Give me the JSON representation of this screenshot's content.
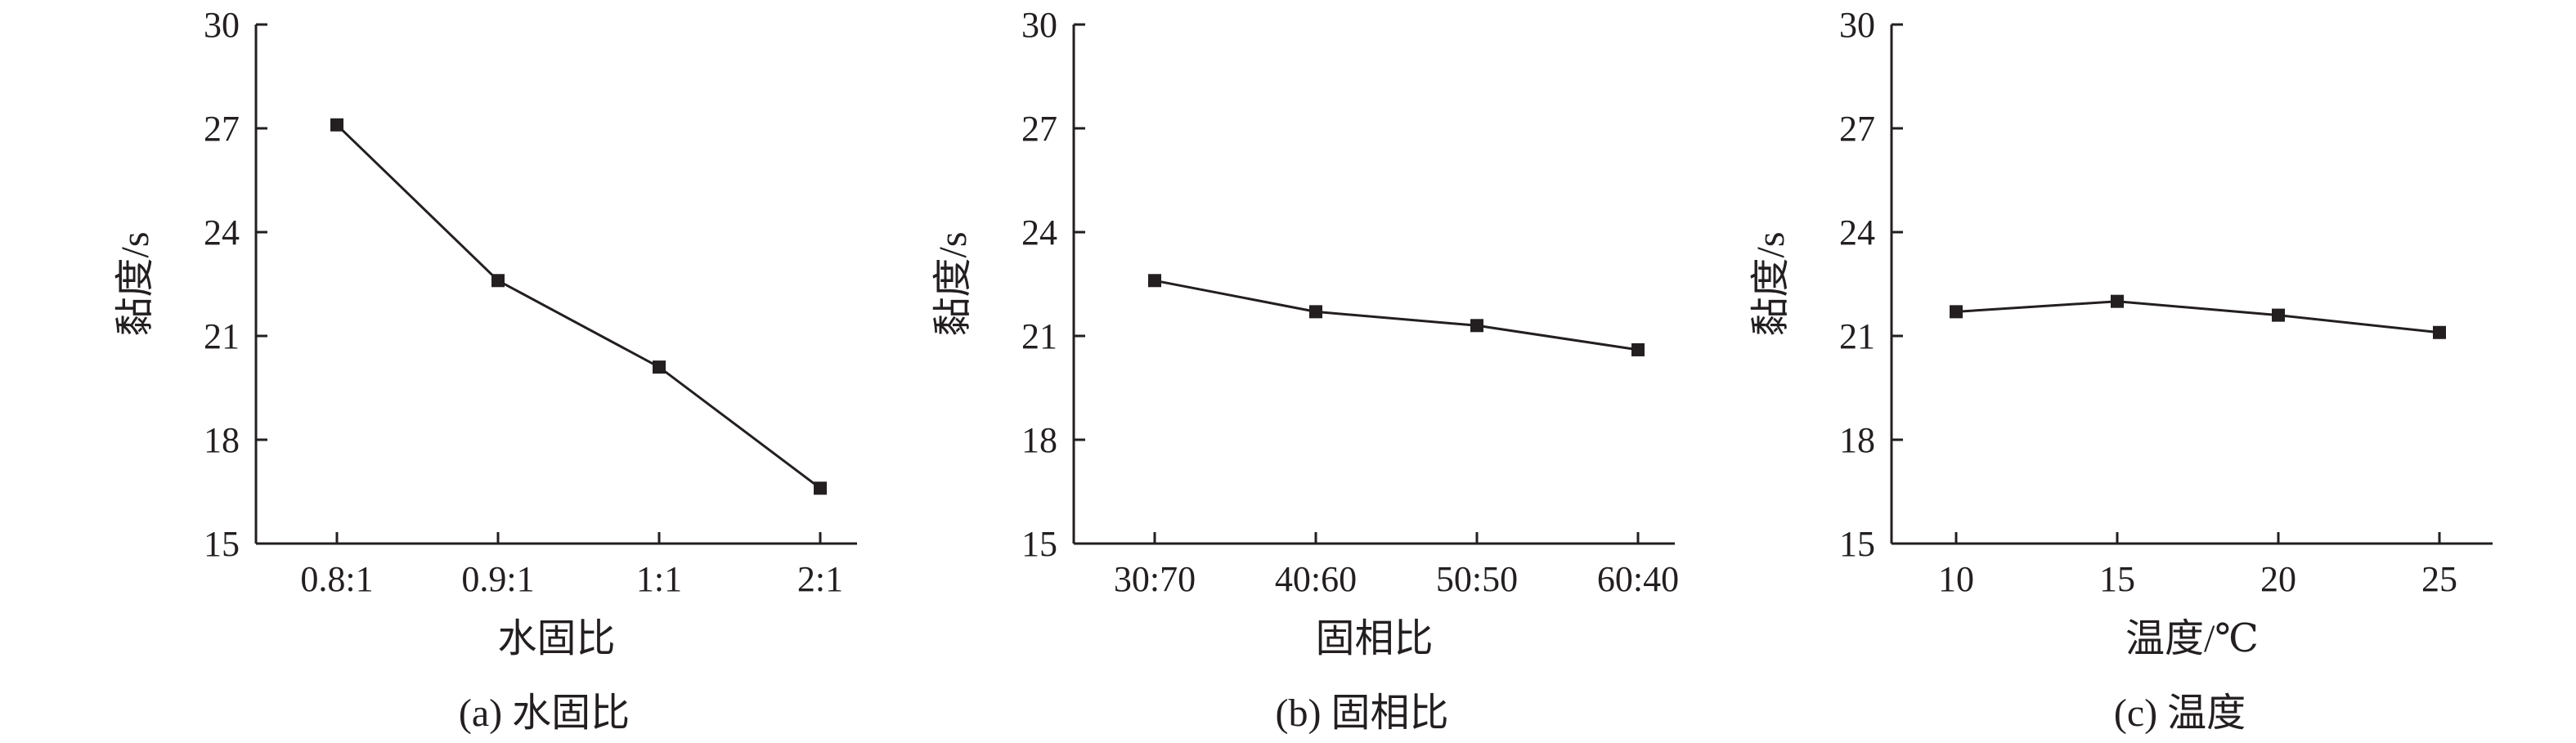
{
  "chart_data": [
    {
      "type": "line",
      "categories": [
        "0.8:1",
        "0.9:1",
        "1:1",
        "2:1"
      ],
      "series": [
        {
          "values": [
            27.1,
            22.6,
            20.1,
            16.6
          ]
        }
      ],
      "xlabel": "水固比",
      "ylabel": "黏度/s",
      "caption": "(a) 水固比",
      "ylim": [
        15,
        30
      ],
      "yticks": [
        "15",
        "18",
        "21",
        "24",
        "27",
        "30"
      ],
      "grid": false,
      "marker": "square"
    },
    {
      "type": "line",
      "categories": [
        "30:70",
        "40:60",
        "50:50",
        "60:40"
      ],
      "series": [
        {
          "values": [
            22.6,
            21.7,
            21.3,
            20.6
          ]
        }
      ],
      "xlabel": "固相比",
      "ylabel": "黏度/s",
      "caption": "(b) 固相比",
      "ylim": [
        15,
        30
      ],
      "yticks": [
        "15",
        "18",
        "21",
        "24",
        "27",
        "30"
      ],
      "grid": false,
      "marker": "square"
    },
    {
      "type": "line",
      "categories": [
        "10",
        "15",
        "20",
        "25"
      ],
      "series": [
        {
          "values": [
            21.7,
            22.0,
            21.6,
            21.1
          ]
        }
      ],
      "xlabel": "温度/℃",
      "ylabel": "黏度/s",
      "caption": "(c) 温度",
      "ylim": [
        15,
        30
      ],
      "yticks": [
        "15",
        "18",
        "21",
        "24",
        "27",
        "30"
      ],
      "grid": false,
      "marker": "square"
    }
  ],
  "colors": {
    "ink": "#231f20"
  }
}
